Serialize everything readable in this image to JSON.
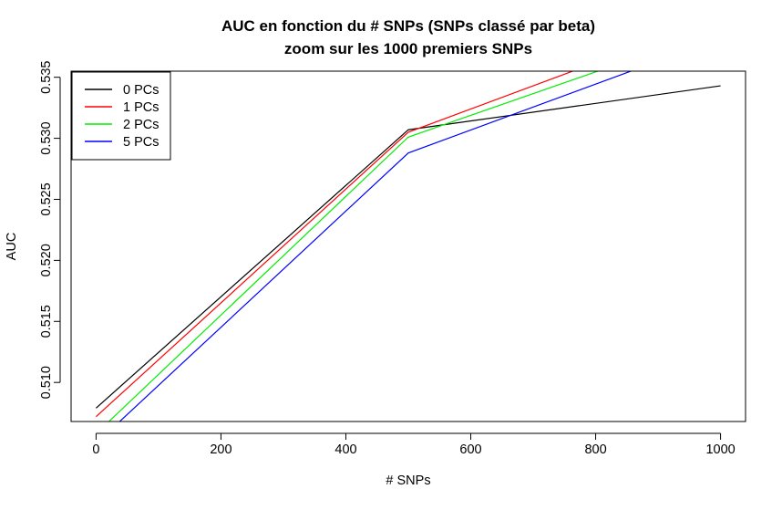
{
  "chart_data": {
    "type": "line",
    "title": "AUC en fonction du # SNPs (SNPs classé par beta)",
    "subtitle": "zoom sur les 1000 premiers SNPs",
    "xlabel": "# SNPs",
    "ylabel": "AUC",
    "xlim": [
      -40,
      1040
    ],
    "ylim": [
      0.5068,
      0.5355
    ],
    "x_ticks": [
      0,
      200,
      400,
      600,
      800,
      1000
    ],
    "x_tick_labels": [
      "0",
      "200",
      "400",
      "600",
      "800",
      "1000"
    ],
    "y_ticks": [
      0.51,
      0.515,
      0.52,
      0.525,
      0.53,
      0.535
    ],
    "y_tick_labels": [
      "0.510",
      "0.515",
      "0.520",
      "0.525",
      "0.530",
      "0.535"
    ],
    "grid": false,
    "legend_position": "top-left",
    "series": [
      {
        "name": "0 PCs",
        "color": "#000000",
        "x": [
          0,
          500,
          1000
        ],
        "y": [
          0.5079,
          0.5307,
          0.5343
        ]
      },
      {
        "name": "1 PCs",
        "color": "#ff0000",
        "x": [
          0,
          500,
          1000
        ],
        "y": [
          0.5072,
          0.5305,
          0.54
        ]
      },
      {
        "name": "2 PCs",
        "color": "#00ee00",
        "x": [
          0,
          500,
          1000
        ],
        "y": [
          0.5058,
          0.5301,
          0.539
        ]
      },
      {
        "name": "5 PCs",
        "color": "#0000ff",
        "x": [
          0,
          500,
          1000
        ],
        "y": [
          0.505,
          0.5288,
          0.5382
        ]
      }
    ]
  }
}
